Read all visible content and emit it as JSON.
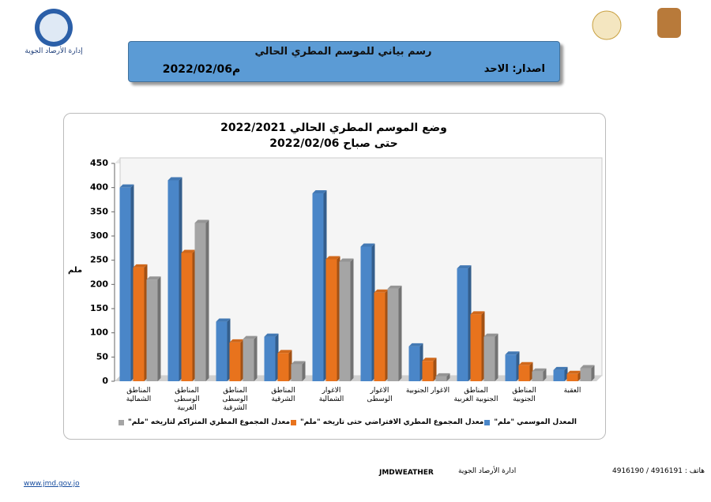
{
  "header": {
    "logo_caption": "إدارة الأرصاد الجوية",
    "title": "رسم بياني للموسم المطري الحالي",
    "issue": "اصدار: الاحد",
    "date": "2022/02/06م"
  },
  "chart_data": {
    "type": "bar",
    "title": "وضع الموسم المطري الحالي 2022/2021",
    "subtitle": "حتى صباح 2022/02/06",
    "y_label": "ملم",
    "categories": [
      "المناطق الشمالية",
      "المناطق الوسطى الغربية",
      "المناطق الوسطى الشرقية",
      "المناطق الشرقية",
      "الاغوار الشمالية",
      "الاغوار الوسطى",
      "الاغوار الجنوبية",
      "المناطق الجنوبية الغربية",
      "المناطق الجنوبية",
      "العقبة"
    ],
    "series": [
      {
        "name": "المعدل الموسمي \"ملم\"",
        "color": "#4a86c8",
        "values": [
          400,
          415,
          123,
          92,
          388,
          278,
          72,
          233,
          55,
          23
        ]
      },
      {
        "name": "معدل المجموع المطري الافتراضي حتى تاريخه \"ملم\"",
        "color": "#e8731d",
        "values": [
          235,
          265,
          80,
          58,
          252,
          183,
          42,
          138,
          33,
          15
        ]
      },
      {
        "name": "معدل المجموع المطري المتراكم لتاريخه \"ملم\"",
        "color": "#a5a5a5",
        "values": [
          210,
          327,
          87,
          35,
          247,
          191,
          10,
          92,
          20,
          27
        ]
      }
    ],
    "ylim": [
      0,
      450
    ],
    "yticks": [
      0,
      50,
      100,
      150,
      200,
      250,
      300,
      350,
      400,
      450
    ],
    "grid": false
  },
  "footer": {
    "website": "www.jmd.gov.jo",
    "brand": "JMDWEATHER",
    "phone": "هاتف : 4916191 / 4916190",
    "org": "ادارة الأرصاد الجوية"
  }
}
